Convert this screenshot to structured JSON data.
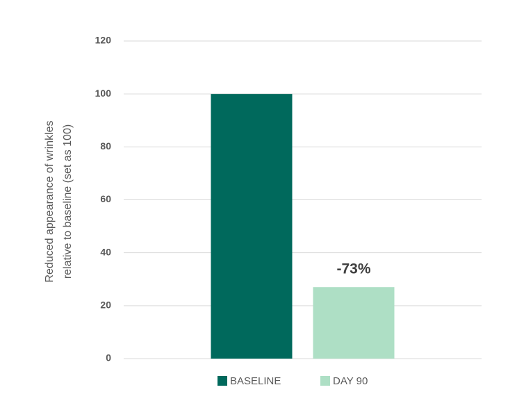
{
  "chart_data": {
    "type": "bar",
    "ylabel": [
      "Reduced appearance of wrinkles",
      "relative to baseline (set as 100)"
    ],
    "categories": [
      null
    ],
    "series": [
      {
        "name": "BASELINE",
        "color": "#00695c",
        "values": [
          100
        ]
      },
      {
        "name": "DAY 90",
        "color": "#aedfc5",
        "values": [
          27
        ]
      }
    ],
    "annotation": "-73%",
    "ylim": [
      0,
      120
    ],
    "yticks": [
      0,
      20,
      40,
      60,
      80,
      100,
      120
    ],
    "grid": true,
    "legend": "bottom"
  }
}
